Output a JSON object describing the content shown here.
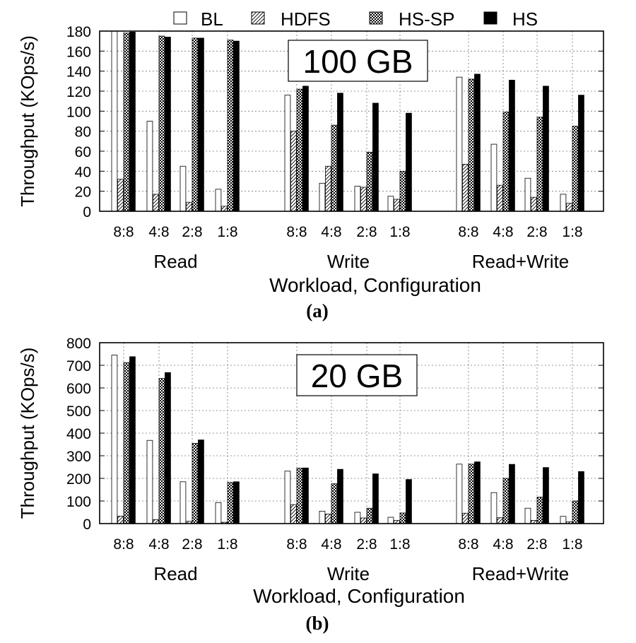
{
  "legend": {
    "items": [
      {
        "label": "BL",
        "style": "white"
      },
      {
        "label": "HDFS",
        "style": "hatch"
      },
      {
        "label": "HS-SP",
        "style": "checker"
      },
      {
        "label": "HS",
        "style": "black"
      }
    ]
  },
  "chart_data": [
    {
      "type": "bar",
      "panel_label": "(a)",
      "size_label": "100 GB",
      "xlabel": "Workload, Configuration",
      "ylabel": "Throughput (KOps/s)",
      "ylim": [
        0,
        180
      ],
      "yticks": [
        0,
        20,
        40,
        60,
        80,
        100,
        120,
        140,
        160,
        180
      ],
      "grid": true,
      "groups": [
        {
          "name": "Read",
          "categories": [
            "8:8",
            "4:8",
            "2:8",
            "1:8"
          ]
        },
        {
          "name": "Write",
          "categories": [
            "8:8",
            "4:8",
            "2:8",
            "1:8"
          ]
        },
        {
          "name": "Read+Write",
          "categories": [
            "8:8",
            "4:8",
            "2:8",
            "1:8"
          ]
        }
      ],
      "series": [
        {
          "name": "BL",
          "values": [
            [
              180,
              90,
              45,
              22
            ],
            [
              116,
              28,
              25,
              15
            ],
            [
              134,
              67,
              33,
              17
            ]
          ]
        },
        {
          "name": "HDFS",
          "values": [
            [
              32,
              17,
              9,
              5
            ],
            [
              80,
              45,
              24,
              12
            ],
            [
              47,
              26,
              14,
              8
            ]
          ]
        },
        {
          "name": "HS-SP",
          "values": [
            [
              178,
              175,
              173,
              171
            ],
            [
              122,
              86,
              59,
              40
            ],
            [
              132,
              99,
              94,
              85
            ]
          ]
        },
        {
          "name": "HS",
          "values": [
            [
              179,
              174,
              173,
              170
            ],
            [
              125,
              118,
              108,
              98
            ],
            [
              137,
              131,
              125,
              116
            ]
          ]
        }
      ]
    },
    {
      "type": "bar",
      "panel_label": "(b)",
      "size_label": "20 GB",
      "xlabel": "Workload, Configuration",
      "ylabel": "Throughput (KOps/s)",
      "ylim": [
        0,
        800
      ],
      "yticks": [
        0,
        100,
        200,
        300,
        400,
        500,
        600,
        700,
        800
      ],
      "grid": true,
      "groups": [
        {
          "name": "Read",
          "categories": [
            "8:8",
            "4:8",
            "2:8",
            "1:8"
          ]
        },
        {
          "name": "Write",
          "categories": [
            "8:8",
            "4:8",
            "2:8",
            "1:8"
          ]
        },
        {
          "name": "Read+Write",
          "categories": [
            "8:8",
            "4:8",
            "2:8",
            "1:8"
          ]
        }
      ],
      "series": [
        {
          "name": "BL",
          "values": [
            [
              745,
              368,
              185,
              93
            ],
            [
              232,
              55,
              50,
              28
            ],
            [
              263,
              137,
              68,
              32
            ]
          ]
        },
        {
          "name": "HDFS",
          "values": [
            [
              33,
              18,
              10,
              6
            ],
            [
              84,
              42,
              25,
              14
            ],
            [
              46,
              26,
              14,
              8
            ]
          ]
        },
        {
          "name": "HS-SP",
          "values": [
            [
              712,
              642,
              355,
              182
            ],
            [
              245,
              176,
              68,
              47
            ],
            [
              263,
              200,
              117,
              100
            ]
          ]
        },
        {
          "name": "HS",
          "values": [
            [
              738,
              668,
              370,
              185
            ],
            [
              246,
              240,
              220,
              195
            ],
            [
              273,
              262,
              248,
              230
            ]
          ]
        }
      ]
    }
  ]
}
